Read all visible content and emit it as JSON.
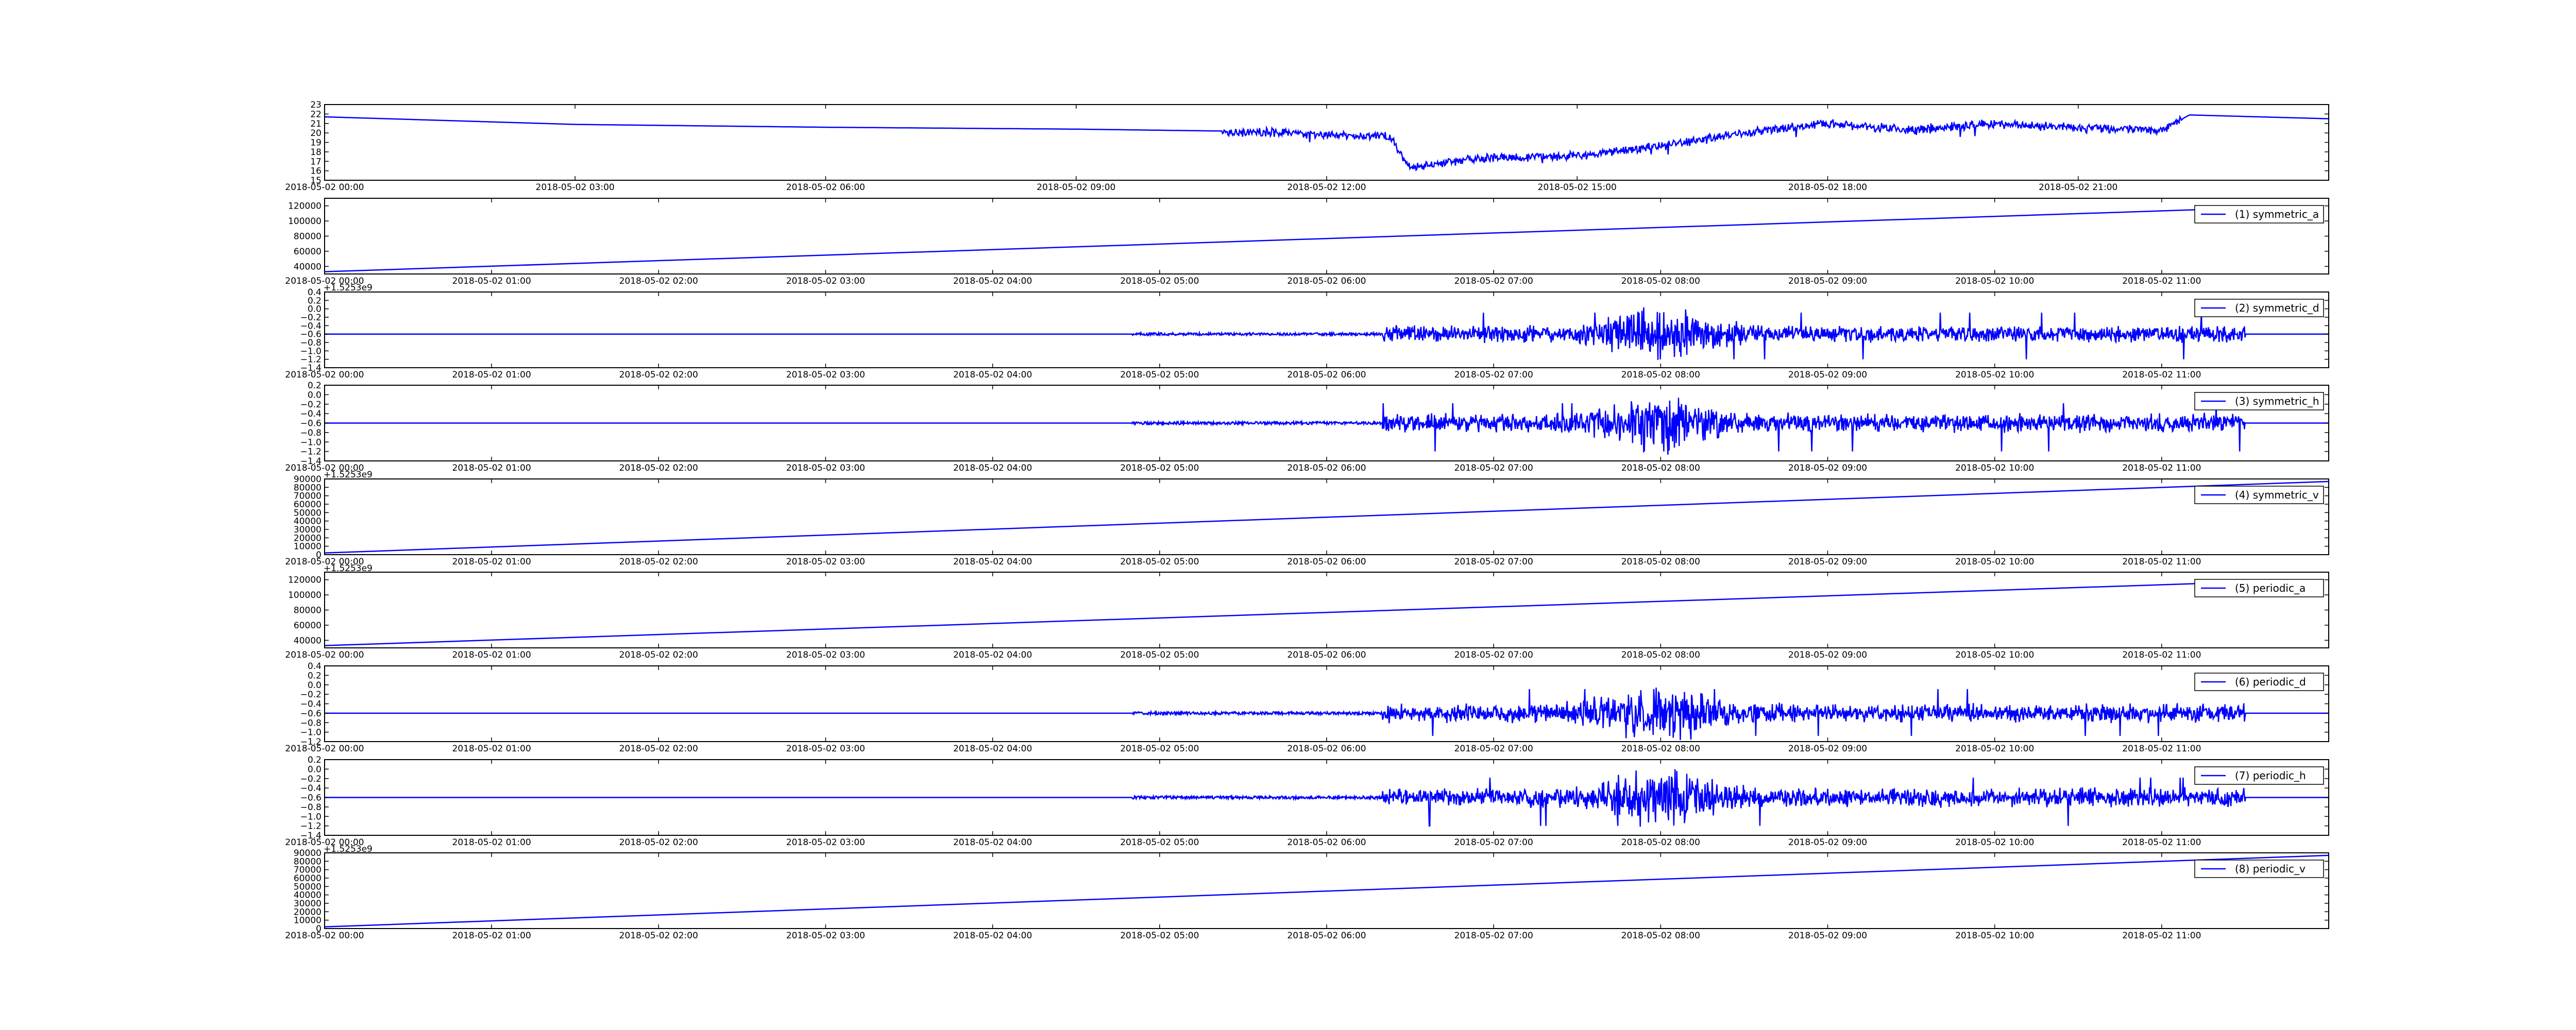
{
  "colors": {
    "line": "#0000ff",
    "frame": "#000000",
    "background": "#ffffff"
  },
  "chart_data": [
    {
      "type": "line",
      "x_axis": "time",
      "xlim": [
        "2018-05-02 00:00",
        "2018-05-02 24:00"
      ],
      "xticks": [
        "2018-05-02 00:00",
        "2018-05-02 03:00",
        "2018-05-02 06:00",
        "2018-05-02 09:00",
        "2018-05-02 12:00",
        "2018-05-02 15:00",
        "2018-05-02 18:00",
        "2018-05-02 21:00"
      ],
      "ylim": [
        15,
        23
      ],
      "yticks": [
        15,
        16,
        17,
        18,
        19,
        20,
        21,
        22,
        23
      ],
      "offset_text": "",
      "legend": "",
      "series": [
        {
          "signal": "temperature",
          "x": [
            "00:00",
            "03:00",
            "06:00",
            "09:00",
            "10:45",
            "12:00",
            "12:45",
            "13:00",
            "13:15",
            "13:30",
            "14:00",
            "15:00",
            "16:00",
            "17:00",
            "18:00",
            "19:00",
            "20:00",
            "21:00",
            "22:00",
            "22:20",
            "24:00"
          ],
          "y": [
            21.7,
            20.9,
            20.6,
            20.4,
            20.2,
            19.8,
            19.6,
            16.3,
            16.6,
            17.0,
            17.4,
            17.6,
            18.6,
            20.0,
            21.0,
            20.3,
            21.0,
            20.5,
            20.3,
            21.9,
            21.5
          ],
          "noise_from": "10:45",
          "noise_to": "22:15",
          "noise_amplitude": 0.8
        }
      ]
    },
    {
      "type": "line",
      "x_axis": "time",
      "xlim": [
        "2018-05-02 00:00",
        "2018-05-02 12:00"
      ],
      "xticks": [
        "2018-05-02 00:00",
        "2018-05-02 01:00",
        "2018-05-02 02:00",
        "2018-05-02 03:00",
        "2018-05-02 04:00",
        "2018-05-02 05:00",
        "2018-05-02 06:00",
        "2018-05-02 07:00",
        "2018-05-02 08:00",
        "2018-05-02 09:00",
        "2018-05-02 10:00",
        "2018-05-02 11:00"
      ],
      "ylim": [
        30000,
        130000
      ],
      "yticks": [
        40000,
        60000,
        80000,
        100000,
        120000
      ],
      "offset_text": "+1.5253e9",
      "legend": "(1) symmetric_a",
      "series": [
        {
          "x": [
            "00:00",
            "11:30"
          ],
          "y": [
            33000,
            117000
          ]
        }
      ]
    },
    {
      "type": "line",
      "x_axis": "time",
      "xlim": [
        "2018-05-02 00:00",
        "2018-05-02 12:00"
      ],
      "xticks": [
        "2018-05-02 00:00",
        "2018-05-02 01:00",
        "2018-05-02 02:00",
        "2018-05-02 03:00",
        "2018-05-02 04:00",
        "2018-05-02 05:00",
        "2018-05-02 06:00",
        "2018-05-02 07:00",
        "2018-05-02 08:00",
        "2018-05-02 09:00",
        "2018-05-02 10:00",
        "2018-05-02 11:00"
      ],
      "ylim": [
        -1.4,
        0.4
      ],
      "yticks": [
        -1.4,
        -1.2,
        -1.0,
        -0.8,
        -0.6,
        -0.4,
        -0.2,
        0.0,
        0.2,
        0.4
      ],
      "yticklabels": [
        "−1.4",
        "−1.2",
        "−1.0",
        "−0.8",
        "−0.6",
        "−0.4",
        "−0.2",
        "0.0",
        "0.2",
        "0.4"
      ],
      "offset_text": "",
      "legend": "(2) symmetric_d",
      "series": [
        {
          "baseline": -0.6,
          "quiet_until": "04:50",
          "low_noise_until": "06:20",
          "noise_until": "11:30",
          "noise_amplitude": 0.3,
          "burst_center": "08:00",
          "max": 0.25,
          "min": -1.35
        }
      ]
    },
    {
      "type": "line",
      "x_axis": "time",
      "xlim": [
        "2018-05-02 00:00",
        "2018-05-02 12:00"
      ],
      "xticks": [
        "2018-05-02 00:00",
        "2018-05-02 01:00",
        "2018-05-02 02:00",
        "2018-05-02 03:00",
        "2018-05-02 04:00",
        "2018-05-02 05:00",
        "2018-05-02 06:00",
        "2018-05-02 07:00",
        "2018-05-02 08:00",
        "2018-05-02 09:00",
        "2018-05-02 10:00",
        "2018-05-02 11:00"
      ],
      "ylim": [
        -1.4,
        0.2
      ],
      "yticks": [
        -1.4,
        -1.2,
        -1.0,
        -0.8,
        -0.6,
        -0.4,
        -0.2,
        0.0,
        0.2
      ],
      "yticklabels": [
        "−1.4",
        "−1.2",
        "−1.0",
        "−0.8",
        "−0.6",
        "−0.4",
        "−0.2",
        "0.0",
        "0.2"
      ],
      "offset_text": "+1.5253e9",
      "legend": "(3) symmetric_h",
      "series": [
        {
          "baseline": -0.6,
          "quiet_until": "04:50",
          "low_noise_until": "06:20",
          "noise_until": "11:30",
          "noise_amplitude": 0.3,
          "burst_center": "08:00",
          "max": 0.1,
          "min": -1.35
        }
      ]
    },
    {
      "type": "line",
      "x_axis": "time",
      "xlim": [
        "2018-05-02 00:00",
        "2018-05-02 12:00"
      ],
      "xticks": [
        "2018-05-02 00:00",
        "2018-05-02 01:00",
        "2018-05-02 02:00",
        "2018-05-02 03:00",
        "2018-05-02 04:00",
        "2018-05-02 05:00",
        "2018-05-02 06:00",
        "2018-05-02 07:00",
        "2018-05-02 08:00",
        "2018-05-02 09:00",
        "2018-05-02 10:00",
        "2018-05-02 11:00"
      ],
      "ylim": [
        0,
        90000
      ],
      "yticks": [
        0,
        10000,
        20000,
        30000,
        40000,
        50000,
        60000,
        70000,
        80000,
        90000
      ],
      "offset_text": "+1.5253e9",
      "legend": "(4) symmetric_v",
      "series": [
        {
          "x": [
            "00:00",
            "12:00"
          ],
          "y": [
            2000,
            87000
          ]
        }
      ]
    },
    {
      "type": "line",
      "x_axis": "time",
      "xlim": [
        "2018-05-02 00:00",
        "2018-05-02 12:00"
      ],
      "xticks": [
        "2018-05-02 00:00",
        "2018-05-02 01:00",
        "2018-05-02 02:00",
        "2018-05-02 03:00",
        "2018-05-02 04:00",
        "2018-05-02 05:00",
        "2018-05-02 06:00",
        "2018-05-02 07:00",
        "2018-05-02 08:00",
        "2018-05-02 09:00",
        "2018-05-02 10:00",
        "2018-05-02 11:00"
      ],
      "ylim": [
        30000,
        130000
      ],
      "yticks": [
        40000,
        60000,
        80000,
        100000,
        120000
      ],
      "offset_text": "",
      "legend": "(5) periodic_a",
      "series": [
        {
          "x": [
            "00:00",
            "11:30"
          ],
          "y": [
            33000,
            117000
          ]
        }
      ]
    },
    {
      "type": "line",
      "x_axis": "time",
      "xlim": [
        "2018-05-02 00:00",
        "2018-05-02 12:00"
      ],
      "xticks": [
        "2018-05-02 00:00",
        "2018-05-02 01:00",
        "2018-05-02 02:00",
        "2018-05-02 03:00",
        "2018-05-02 04:00",
        "2018-05-02 05:00",
        "2018-05-02 06:00",
        "2018-05-02 07:00",
        "2018-05-02 08:00",
        "2018-05-02 09:00",
        "2018-05-02 10:00",
        "2018-05-02 11:00"
      ],
      "ylim": [
        -1.2,
        0.4
      ],
      "yticks": [
        -1.2,
        -1.0,
        -0.8,
        -0.6,
        -0.4,
        -0.2,
        0.0,
        0.2,
        0.4
      ],
      "yticklabels": [
        "−1.2",
        "−1.0",
        "−0.8",
        "−0.6",
        "−0.4",
        "−0.2",
        "0.0",
        "0.2",
        "0.4"
      ],
      "offset_text": "",
      "legend": "(6) periodic_d",
      "series": [
        {
          "baseline": -0.6,
          "quiet_until": "04:50",
          "low_noise_until": "06:20",
          "noise_until": "11:30",
          "noise_amplitude": 0.3,
          "burst_center": "08:00",
          "max": 0.25,
          "min": -1.2
        }
      ]
    },
    {
      "type": "line",
      "x_axis": "time",
      "xlim": [
        "2018-05-02 00:00",
        "2018-05-02 12:00"
      ],
      "xticks": [
        "2018-05-02 00:00",
        "2018-05-02 01:00",
        "2018-05-02 02:00",
        "2018-05-02 03:00",
        "2018-05-02 04:00",
        "2018-05-02 05:00",
        "2018-05-02 06:00",
        "2018-05-02 07:00",
        "2018-05-02 08:00",
        "2018-05-02 09:00",
        "2018-05-02 10:00",
        "2018-05-02 11:00"
      ],
      "ylim": [
        -1.4,
        0.2
      ],
      "yticks": [
        -1.4,
        -1.2,
        -1.0,
        -0.8,
        -0.6,
        -0.4,
        -0.2,
        0.0,
        0.2
      ],
      "yticklabels": [
        "−1.4",
        "−1.2",
        "−1.0",
        "−0.8",
        "−0.6",
        "−0.4",
        "−0.2",
        "0.0",
        "0.2"
      ],
      "offset_text": "+1.5253e9",
      "legend": "(7) periodic_h",
      "series": [
        {
          "baseline": -0.6,
          "quiet_until": "04:50",
          "low_noise_until": "06:20",
          "noise_until": "11:30",
          "noise_amplitude": 0.3,
          "burst_center": "08:00",
          "max": 0.1,
          "min": -1.35
        }
      ]
    },
    {
      "type": "line",
      "x_axis": "time",
      "xlim": [
        "2018-05-02 00:00",
        "2018-05-02 12:00"
      ],
      "xticks": [
        "2018-05-02 00:00",
        "2018-05-02 01:00",
        "2018-05-02 02:00",
        "2018-05-02 03:00",
        "2018-05-02 04:00",
        "2018-05-02 05:00",
        "2018-05-02 06:00",
        "2018-05-02 07:00",
        "2018-05-02 08:00",
        "2018-05-02 09:00",
        "2018-05-02 10:00",
        "2018-05-02 11:00"
      ],
      "ylim": [
        0,
        90000
      ],
      "yticks": [
        0,
        10000,
        20000,
        30000,
        40000,
        50000,
        60000,
        70000,
        80000,
        90000
      ],
      "offset_text": "",
      "legend": "(8) periodic_v",
      "series": [
        {
          "x": [
            "00:00",
            "12:00"
          ],
          "y": [
            2000,
            87000
          ]
        }
      ]
    }
  ]
}
